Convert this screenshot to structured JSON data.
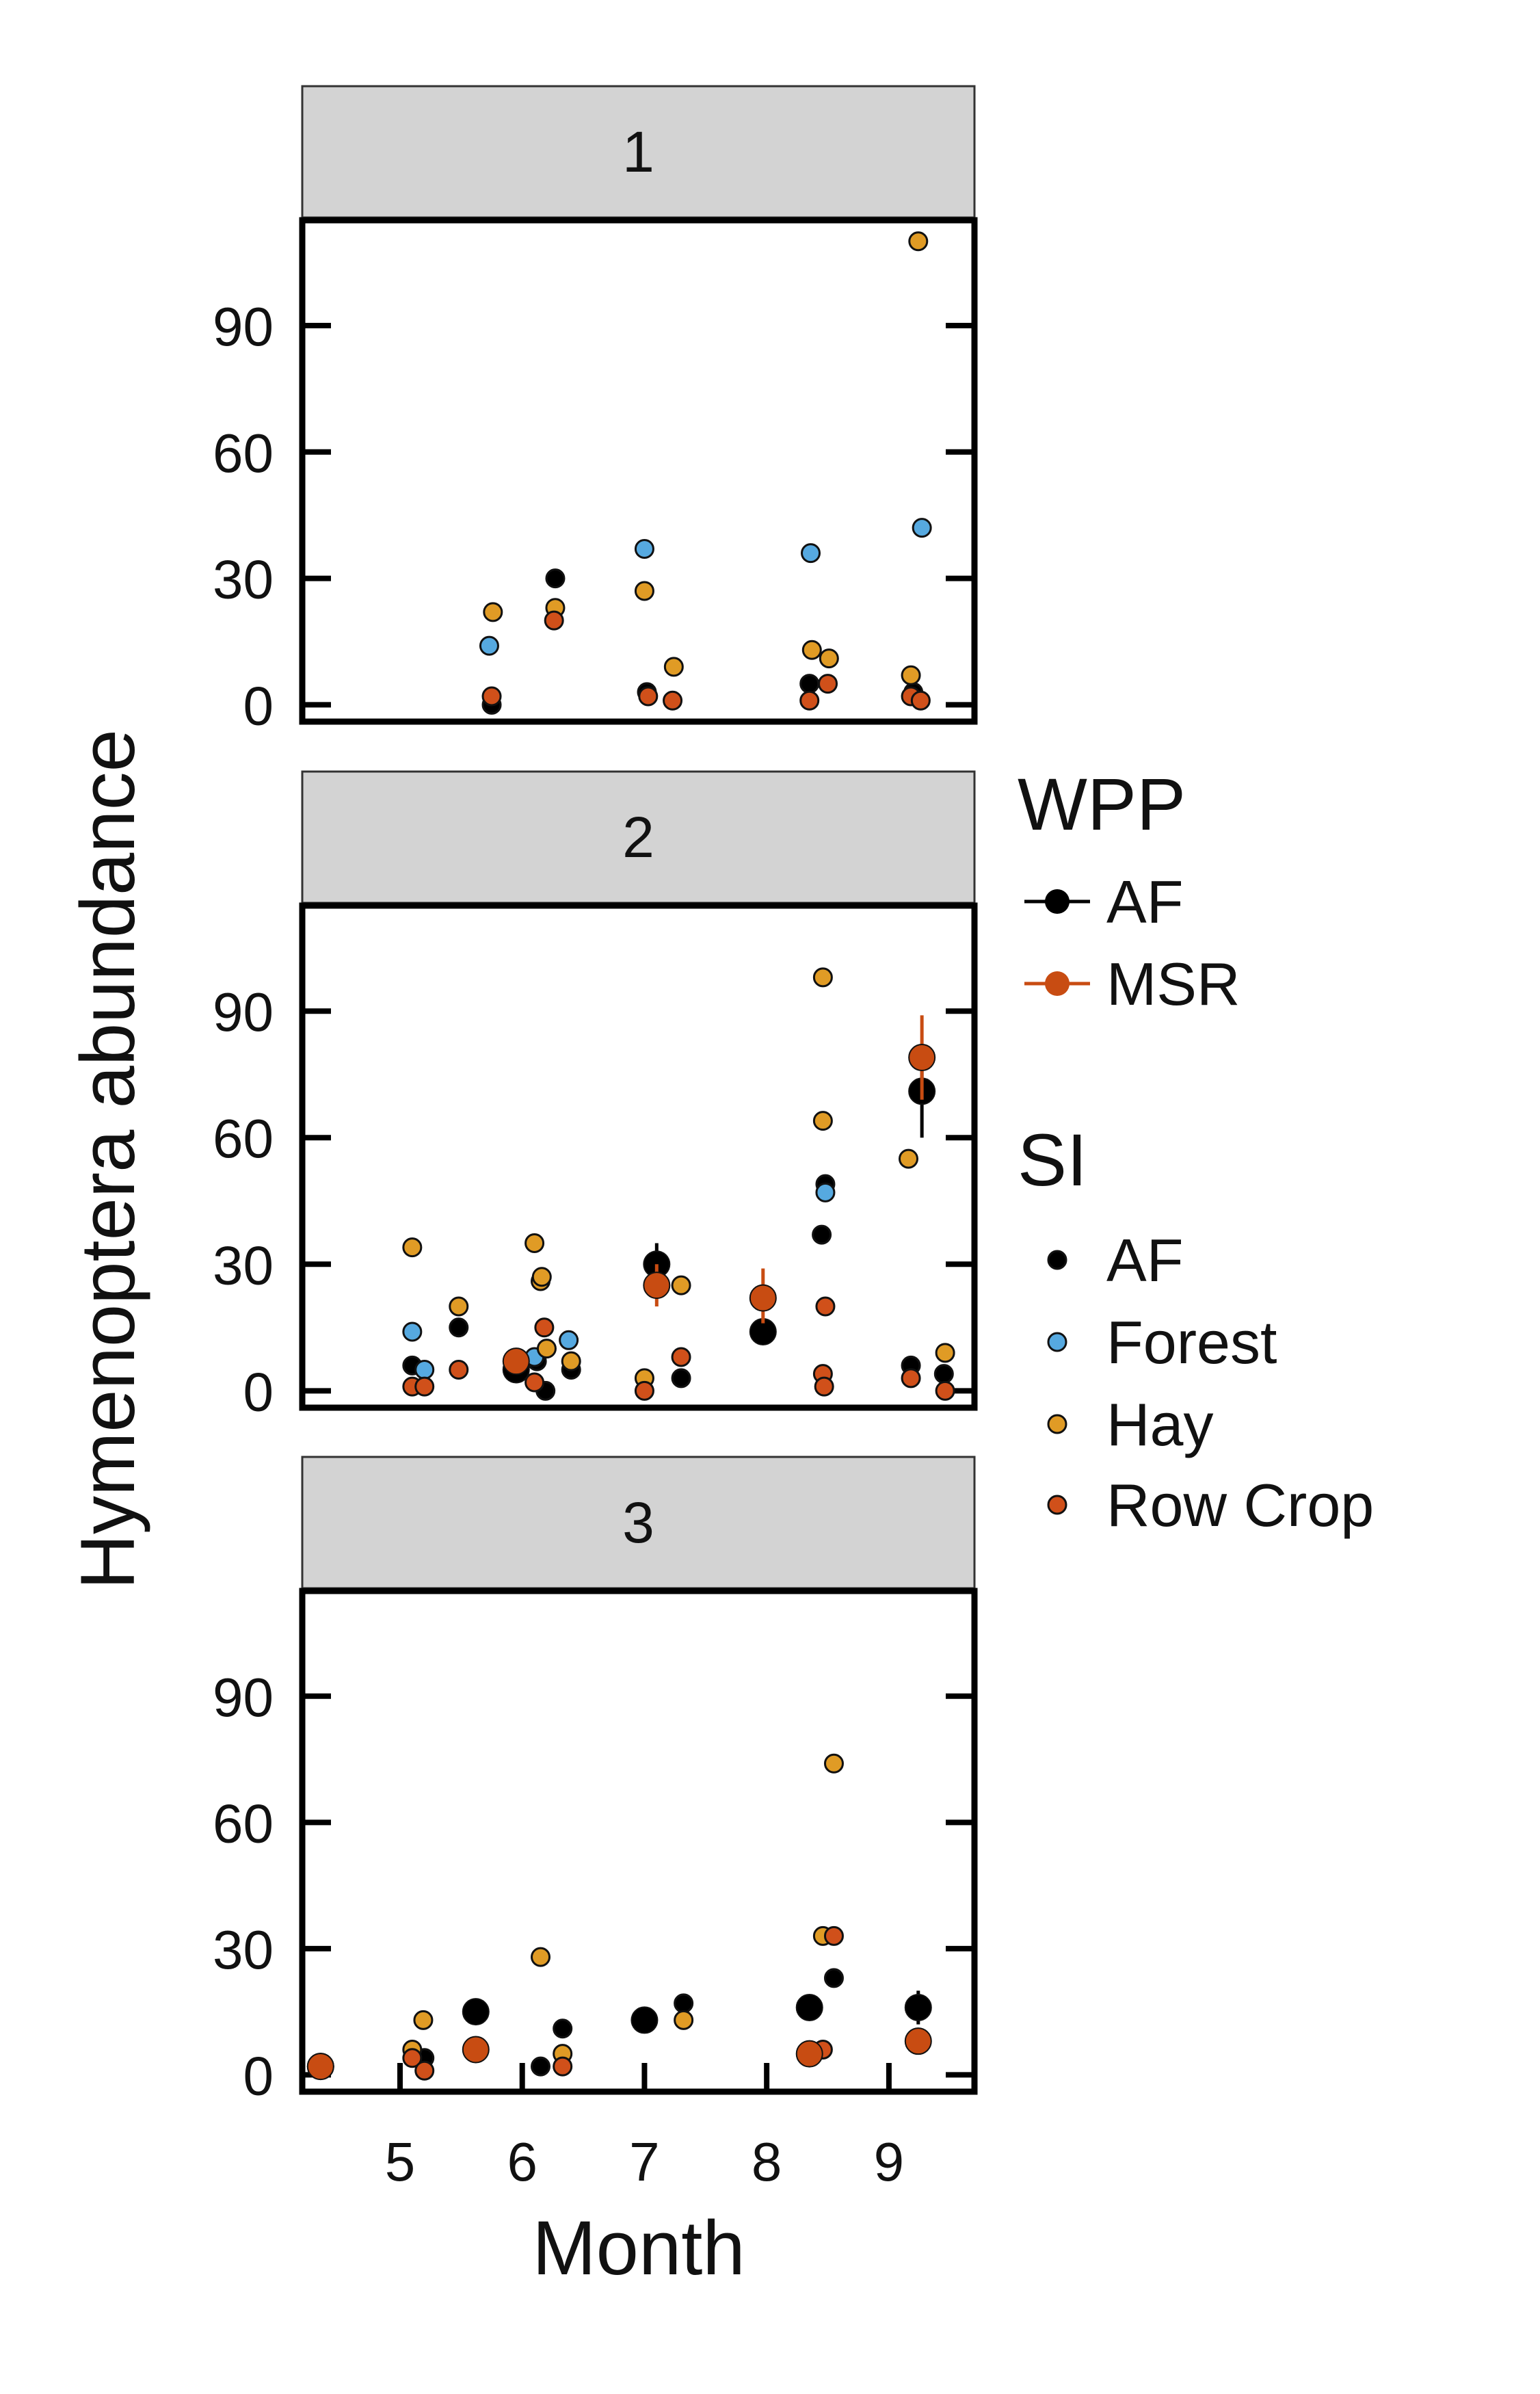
{
  "chart_data": {
    "type": "scatter",
    "xlabel": "Month",
    "ylabel": "Hymenoptera abundance",
    "xlim": [
      4.2,
      9.7
    ],
    "ylim": [
      -4,
      115
    ],
    "x_ticks": [
      5,
      6,
      7,
      8,
      9
    ],
    "y_ticks": [
      0,
      30,
      60,
      90
    ],
    "facet_labels": [
      "1",
      "2",
      "3"
    ],
    "legend": {
      "wpp": {
        "title": "WPP",
        "items": [
          {
            "label": "AF",
            "color": "#000000"
          },
          {
            "label": "MSR",
            "color": "#c84c12"
          }
        ]
      },
      "si": {
        "title": "SI",
        "items": [
          {
            "label": "AF",
            "color": "#000000"
          },
          {
            "label": "Forest",
            "color": "#56a9e0"
          },
          {
            "label": "Hay",
            "color": "#e09b25"
          },
          {
            "label": "Row Crop",
            "color": "#d0501a"
          }
        ]
      }
    },
    "colors": {
      "AF": "#000000",
      "Forest": "#56a9e0",
      "Hay": "#e09b25",
      "Row Crop": "#d0501a",
      "MSR": "#c84c12",
      "strip": "#d3d3d3"
    },
    "panels": [
      {
        "label": "1",
        "points": [
          {
            "x": 5.75,
            "y": 0,
            "si": "AF"
          },
          {
            "x": 6.27,
            "y": 30,
            "si": "AF"
          },
          {
            "x": 7.02,
            "y": 3,
            "si": "AF"
          },
          {
            "x": 8.35,
            "y": 5,
            "si": "AF"
          },
          {
            "x": 9.2,
            "y": 3,
            "si": "AF"
          },
          {
            "x": 5.73,
            "y": 14,
            "si": "Forest"
          },
          {
            "x": 7.0,
            "y": 37,
            "si": "Forest"
          },
          {
            "x": 8.36,
            "y": 36,
            "si": "Forest"
          },
          {
            "x": 9.27,
            "y": 42,
            "si": "Forest"
          },
          {
            "x": 5.76,
            "y": 22,
            "si": "Hay"
          },
          {
            "x": 6.27,
            "y": 23,
            "si": "Hay"
          },
          {
            "x": 7.0,
            "y": 27,
            "si": "Hay"
          },
          {
            "x": 7.24,
            "y": 9,
            "si": "Hay"
          },
          {
            "x": 8.37,
            "y": 13,
            "si": "Hay"
          },
          {
            "x": 8.51,
            "y": 11,
            "si": "Hay"
          },
          {
            "x": 9.18,
            "y": 7,
            "si": "Hay"
          },
          {
            "x": 9.24,
            "y": 110,
            "si": "Hay"
          },
          {
            "x": 5.75,
            "y": 2,
            "si": "Row Crop"
          },
          {
            "x": 6.26,
            "y": 20,
            "si": "Row Crop"
          },
          {
            "x": 7.03,
            "y": 2,
            "si": "Row Crop"
          },
          {
            "x": 7.23,
            "y": 1,
            "si": "Row Crop"
          },
          {
            "x": 8.35,
            "y": 1,
            "si": "Row Crop"
          },
          {
            "x": 8.5,
            "y": 5,
            "si": "Row Crop"
          },
          {
            "x": 9.18,
            "y": 2,
            "si": "Row Crop"
          },
          {
            "x": 9.26,
            "y": 1,
            "si": "Row Crop"
          }
        ],
        "means": []
      },
      {
        "label": "2",
        "points": [
          {
            "x": 5.1,
            "y": 6,
            "si": "AF"
          },
          {
            "x": 5.48,
            "y": 15,
            "si": "AF"
          },
          {
            "x": 6.12,
            "y": 7,
            "si": "AF"
          },
          {
            "x": 6.19,
            "y": 0,
            "si": "AF"
          },
          {
            "x": 6.4,
            "y": 5,
            "si": "AF"
          },
          {
            "x": 7.3,
            "y": 3,
            "si": "AF"
          },
          {
            "x": 8.45,
            "y": 37,
            "si": "AF"
          },
          {
            "x": 8.48,
            "y": 49,
            "si": "AF"
          },
          {
            "x": 9.18,
            "y": 6,
            "si": "AF"
          },
          {
            "x": 9.45,
            "y": 4,
            "si": "AF"
          },
          {
            "x": 5.1,
            "y": 14,
            "si": "Forest"
          },
          {
            "x": 5.2,
            "y": 5,
            "si": "Forest"
          },
          {
            "x": 6.1,
            "y": 8,
            "si": "Forest"
          },
          {
            "x": 6.38,
            "y": 12,
            "si": "Forest"
          },
          {
            "x": 8.48,
            "y": 47,
            "si": "Forest"
          },
          {
            "x": 5.1,
            "y": 34,
            "si": "Hay"
          },
          {
            "x": 5.48,
            "y": 20,
            "si": "Hay"
          },
          {
            "x": 6.1,
            "y": 35,
            "si": "Hay"
          },
          {
            "x": 6.15,
            "y": 26,
            "si": "Hay"
          },
          {
            "x": 6.16,
            "y": 27,
            "si": "Hay"
          },
          {
            "x": 6.2,
            "y": 10,
            "si": "Hay"
          },
          {
            "x": 6.4,
            "y": 7,
            "si": "Hay"
          },
          {
            "x": 7.0,
            "y": 3,
            "si": "Hay"
          },
          {
            "x": 7.3,
            "y": 25,
            "si": "Hay"
          },
          {
            "x": 8.46,
            "y": 98,
            "si": "Hay"
          },
          {
            "x": 8.46,
            "y": 64,
            "si": "Hay"
          },
          {
            "x": 9.16,
            "y": 55,
            "si": "Hay"
          },
          {
            "x": 9.46,
            "y": 9,
            "si": "Hay"
          },
          {
            "x": 5.1,
            "y": 1,
            "si": "Row Crop"
          },
          {
            "x": 5.2,
            "y": 1,
            "si": "Row Crop"
          },
          {
            "x": 5.48,
            "y": 5,
            "si": "Row Crop"
          },
          {
            "x": 5.95,
            "y": 7,
            "si": "Row Crop"
          },
          {
            "x": 6.1,
            "y": 2,
            "si": "Row Crop"
          },
          {
            "x": 6.18,
            "y": 15,
            "si": "Row Crop"
          },
          {
            "x": 7.0,
            "y": 0,
            "si": "Row Crop"
          },
          {
            "x": 7.3,
            "y": 8,
            "si": "Row Crop"
          },
          {
            "x": 8.46,
            "y": 4,
            "si": "Row Crop"
          },
          {
            "x": 8.47,
            "y": 1,
            "si": "Row Crop"
          },
          {
            "x": 8.48,
            "y": 20,
            "si": "Row Crop"
          },
          {
            "x": 9.18,
            "y": 3,
            "si": "Row Crop"
          },
          {
            "x": 9.46,
            "y": 0,
            "si": "Row Crop"
          }
        ],
        "means": [
          {
            "x": 5.95,
            "y": 5,
            "wpp": "AF",
            "lo": 4,
            "hi": 6
          },
          {
            "x": 5.95,
            "y": 7,
            "wpp": "MSR",
            "lo": 6,
            "hi": 8
          },
          {
            "x": 7.1,
            "y": 30,
            "wpp": "AF",
            "lo": 26,
            "hi": 35
          },
          {
            "x": 7.1,
            "y": 25,
            "wpp": "MSR",
            "lo": 20,
            "hi": 30
          },
          {
            "x": 7.97,
            "y": 14,
            "wpp": "AF",
            "lo": 13,
            "hi": 15
          },
          {
            "x": 7.97,
            "y": 22,
            "wpp": "MSR",
            "lo": 16,
            "hi": 29
          },
          {
            "x": 9.27,
            "y": 71,
            "wpp": "AF",
            "lo": 60,
            "hi": 82
          },
          {
            "x": 9.27,
            "y": 79,
            "wpp": "MSR",
            "lo": 69,
            "hi": 89
          }
        ]
      },
      {
        "label": "3",
        "points": [
          {
            "x": 5.2,
            "y": 4,
            "si": "AF"
          },
          {
            "x": 6.15,
            "y": 2,
            "si": "AF"
          },
          {
            "x": 6.33,
            "y": 11,
            "si": "AF"
          },
          {
            "x": 7.32,
            "y": 17,
            "si": "AF"
          },
          {
            "x": 8.55,
            "y": 23,
            "si": "AF"
          },
          {
            "x": 5.19,
            "y": 13,
            "si": "Hay"
          },
          {
            "x": 5.1,
            "y": 6,
            "si": "Hay"
          },
          {
            "x": 6.15,
            "y": 28,
            "si": "Hay"
          },
          {
            "x": 6.33,
            "y": 5,
            "si": "Hay"
          },
          {
            "x": 7.32,
            "y": 13,
            "si": "Hay"
          },
          {
            "x": 8.46,
            "y": 33,
            "si": "Hay"
          },
          {
            "x": 8.55,
            "y": 74,
            "si": "Hay"
          },
          {
            "x": 5.1,
            "y": 4,
            "si": "Row Crop"
          },
          {
            "x": 5.2,
            "y": 1,
            "si": "Row Crop"
          },
          {
            "x": 6.33,
            "y": 2,
            "si": "Row Crop"
          },
          {
            "x": 8.46,
            "y": 6,
            "si": "Row Crop"
          },
          {
            "x": 8.55,
            "y": 33,
            "si": "Row Crop"
          }
        ],
        "means": [
          {
            "x": 4.35,
            "y": 2,
            "wpp": "AF",
            "lo": 1,
            "hi": 3
          },
          {
            "x": 4.35,
            "y": 2,
            "wpp": "MSR",
            "lo": 1,
            "hi": 3
          },
          {
            "x": 5.62,
            "y": 15,
            "wpp": "AF",
            "lo": 14,
            "hi": 16
          },
          {
            "x": 5.62,
            "y": 6,
            "wpp": "MSR",
            "lo": 5,
            "hi": 7
          },
          {
            "x": 7.0,
            "y": 13,
            "wpp": "AF",
            "lo": 12,
            "hi": 14
          },
          {
            "x": 8.35,
            "y": 16,
            "wpp": "AF",
            "lo": 15,
            "hi": 17
          },
          {
            "x": 8.35,
            "y": 5,
            "wpp": "MSR",
            "lo": 4,
            "hi": 6
          },
          {
            "x": 9.24,
            "y": 16,
            "wpp": "AF",
            "lo": 12,
            "hi": 20
          },
          {
            "x": 9.24,
            "y": 8,
            "wpp": "MSR",
            "lo": 7,
            "hi": 9
          }
        ]
      }
    ]
  }
}
